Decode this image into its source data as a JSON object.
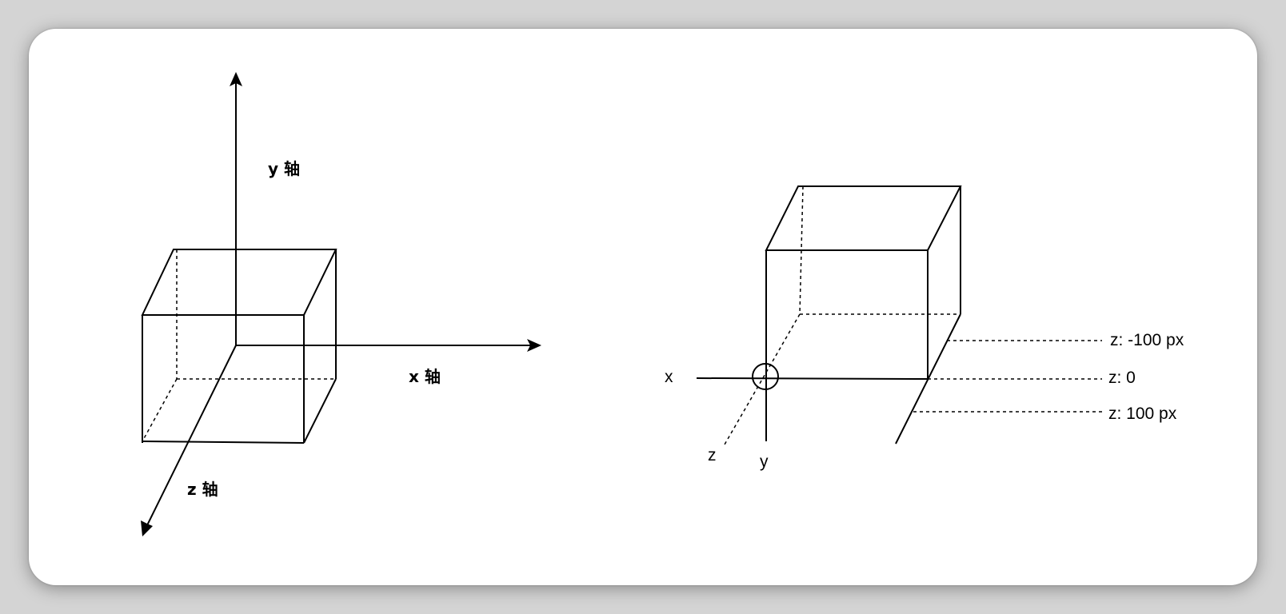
{
  "left_diagram": {
    "y_axis_label": "y 轴",
    "x_axis_label": "x 轴",
    "z_axis_label": "z 轴"
  },
  "right_diagram": {
    "x_label": "x",
    "y_label": "y",
    "z_label": "z",
    "z_levels": [
      {
        "label": "z: -100 px"
      },
      {
        "label": "z: 0"
      },
      {
        "label": "z: 100 px"
      }
    ]
  }
}
